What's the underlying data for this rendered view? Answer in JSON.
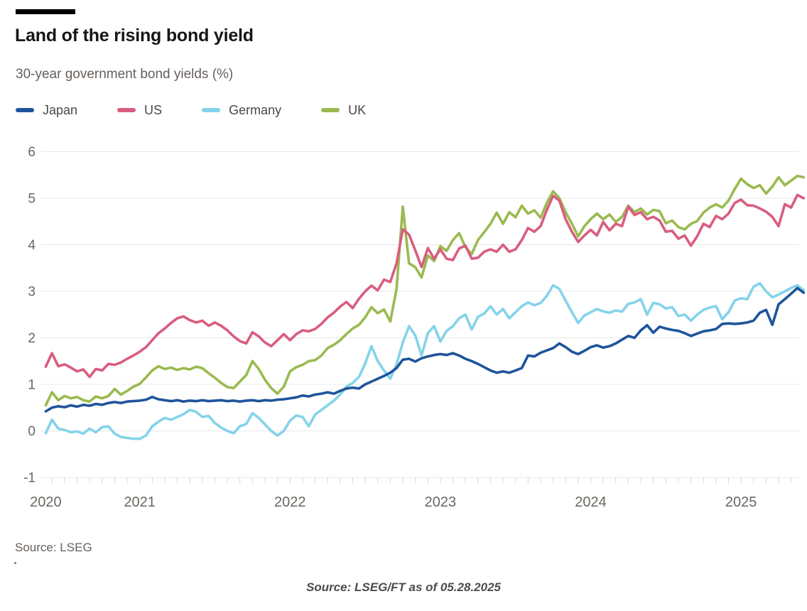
{
  "header": {
    "kicker_bar_color": "#000000",
    "title": "Land of the rising bond yield",
    "subtitle": "30-year government bond yields (%)"
  },
  "legend": [
    {
      "label": "Japan",
      "color": "#1e549b"
    },
    {
      "label": "US",
      "color": "#d95d7f"
    },
    {
      "label": "Germany",
      "color": "#84d3ea"
    },
    {
      "label": "UK",
      "color": "#9aba4f"
    }
  ],
  "footer": {
    "source_note": "Source: LSEG",
    "caption": "Source: LSEG/FT as of 05.28.2025"
  },
  "chart_data": {
    "type": "line",
    "title": "Land of the rising bond yield",
    "subtitle": "30-year government bond yields (%)",
    "xlabel": "",
    "ylabel": "",
    "x_unit": "decimal_year",
    "xlim": [
      2020.34,
      2025.42
    ],
    "ylim": [
      -1,
      6
    ],
    "y_ticks": [
      -1,
      0,
      1,
      2,
      3,
      4,
      5,
      6
    ],
    "x_ticks": [
      {
        "label": "2020",
        "t": 2020.375
      },
      {
        "label": "2021",
        "t": 2021
      },
      {
        "label": "2022",
        "t": 2022
      },
      {
        "label": "2023",
        "t": 2023
      },
      {
        "label": "2024",
        "t": 2024
      },
      {
        "label": "2025",
        "t": 2025
      }
    ],
    "minor_ticks": "monthly",
    "grid": "horizontal",
    "legend_position": "top",
    "style": {
      "grid_color": "#e8e8e8",
      "tick_color": "#d6d6d6",
      "axis_label_color": "#6b6661",
      "line_width": 3.6
    },
    "x_start": 2020.375,
    "x_step": 0.0416667,
    "draw_order": [
      3,
      1,
      2,
      0
    ],
    "series": [
      {
        "name": "Japan",
        "color": "#1e549b",
        "values": [
          0.42,
          0.5,
          0.53,
          0.51,
          0.55,
          0.52,
          0.56,
          0.54,
          0.58,
          0.56,
          0.6,
          0.62,
          0.6,
          0.63,
          0.64,
          0.65,
          0.67,
          0.73,
          0.68,
          0.66,
          0.64,
          0.66,
          0.63,
          0.65,
          0.64,
          0.66,
          0.64,
          0.65,
          0.66,
          0.64,
          0.65,
          0.63,
          0.65,
          0.66,
          0.64,
          0.66,
          0.65,
          0.67,
          0.68,
          0.7,
          0.72,
          0.76,
          0.74,
          0.78,
          0.8,
          0.83,
          0.8,
          0.86,
          0.91,
          0.93,
          0.91,
          1.0,
          1.06,
          1.12,
          1.18,
          1.25,
          1.35,
          1.53,
          1.55,
          1.49,
          1.56,
          1.6,
          1.63,
          1.65,
          1.63,
          1.67,
          1.62,
          1.55,
          1.5,
          1.44,
          1.37,
          1.3,
          1.25,
          1.28,
          1.25,
          1.3,
          1.35,
          1.62,
          1.6,
          1.68,
          1.73,
          1.78,
          1.88,
          1.8,
          1.7,
          1.65,
          1.72,
          1.8,
          1.84,
          1.79,
          1.82,
          1.88,
          1.96,
          2.04,
          2.0,
          2.16,
          2.27,
          2.11,
          2.24,
          2.2,
          2.17,
          2.15,
          2.1,
          2.04,
          2.09,
          2.14,
          2.16,
          2.19,
          2.3,
          2.31,
          2.3,
          2.31,
          2.33,
          2.37,
          2.54,
          2.6,
          2.28,
          2.72,
          2.83,
          2.95,
          3.07,
          2.97
        ]
      },
      {
        "name": "US",
        "color": "#d95d7f",
        "values": [
          1.38,
          1.67,
          1.39,
          1.43,
          1.36,
          1.28,
          1.32,
          1.16,
          1.33,
          1.3,
          1.44,
          1.42,
          1.47,
          1.55,
          1.62,
          1.7,
          1.8,
          1.95,
          2.1,
          2.2,
          2.32,
          2.42,
          2.46,
          2.38,
          2.33,
          2.37,
          2.26,
          2.33,
          2.26,
          2.16,
          2.03,
          1.93,
          1.88,
          2.12,
          2.03,
          1.9,
          1.82,
          1.95,
          2.08,
          1.95,
          2.08,
          2.16,
          2.14,
          2.19,
          2.3,
          2.44,
          2.54,
          2.67,
          2.77,
          2.64,
          2.84,
          3.0,
          3.12,
          3.02,
          3.25,
          3.2,
          3.6,
          4.33,
          4.22,
          3.88,
          3.52,
          3.93,
          3.7,
          3.9,
          3.7,
          3.67,
          3.92,
          3.98,
          3.7,
          3.72,
          3.85,
          3.9,
          3.85,
          4.0,
          3.85,
          3.9,
          4.1,
          4.36,
          4.28,
          4.4,
          4.75,
          5.05,
          4.95,
          4.55,
          4.28,
          4.06,
          4.2,
          4.32,
          4.2,
          4.49,
          4.31,
          4.45,
          4.4,
          4.82,
          4.64,
          4.7,
          4.55,
          4.6,
          4.52,
          4.28,
          4.3,
          4.13,
          4.2,
          3.98,
          4.18,
          4.45,
          4.38,
          4.62,
          4.55,
          4.67,
          4.9,
          4.97,
          4.85,
          4.84,
          4.78,
          4.71,
          4.6,
          4.4,
          4.87,
          4.8,
          5.07,
          5.0
        ]
      },
      {
        "name": "Germany",
        "color": "#84d3ea",
        "values": [
          -0.05,
          0.24,
          0.05,
          0.02,
          -0.03,
          -0.01,
          -0.06,
          0.05,
          -0.03,
          0.08,
          0.1,
          -0.06,
          -0.13,
          -0.15,
          -0.17,
          -0.17,
          -0.1,
          0.1,
          0.2,
          0.28,
          0.24,
          0.3,
          0.36,
          0.45,
          0.41,
          0.3,
          0.32,
          0.17,
          0.07,
          0.0,
          -0.05,
          0.1,
          0.15,
          0.38,
          0.28,
          0.14,
          0.0,
          -0.1,
          0.0,
          0.22,
          0.33,
          0.3,
          0.1,
          0.35,
          0.45,
          0.55,
          0.65,
          0.78,
          0.95,
          1.03,
          1.16,
          1.45,
          1.82,
          1.5,
          1.3,
          1.12,
          1.43,
          1.9,
          2.25,
          2.05,
          1.62,
          2.1,
          2.25,
          1.92,
          2.15,
          2.25,
          2.42,
          2.5,
          2.18,
          2.45,
          2.52,
          2.68,
          2.5,
          2.62,
          2.42,
          2.55,
          2.68,
          2.76,
          2.7,
          2.75,
          2.9,
          3.13,
          3.05,
          2.8,
          2.55,
          2.32,
          2.48,
          2.55,
          2.62,
          2.57,
          2.54,
          2.59,
          2.56,
          2.73,
          2.76,
          2.83,
          2.5,
          2.75,
          2.72,
          2.63,
          2.66,
          2.47,
          2.5,
          2.37,
          2.5,
          2.6,
          2.65,
          2.68,
          2.4,
          2.55,
          2.8,
          2.85,
          2.83,
          3.1,
          3.17,
          3.0,
          2.87,
          2.93,
          3.0,
          3.07,
          3.13,
          3.02
        ]
      },
      {
        "name": "UK",
        "color": "#9aba4f",
        "values": [
          0.55,
          0.83,
          0.66,
          0.75,
          0.7,
          0.73,
          0.66,
          0.63,
          0.74,
          0.7,
          0.75,
          0.9,
          0.78,
          0.86,
          0.95,
          1.01,
          1.15,
          1.3,
          1.39,
          1.33,
          1.36,
          1.31,
          1.35,
          1.32,
          1.38,
          1.35,
          1.24,
          1.14,
          1.03,
          0.94,
          0.92,
          1.06,
          1.2,
          1.5,
          1.33,
          1.1,
          0.92,
          0.8,
          0.95,
          1.28,
          1.37,
          1.42,
          1.5,
          1.52,
          1.62,
          1.78,
          1.85,
          1.95,
          2.08,
          2.2,
          2.28,
          2.44,
          2.66,
          2.53,
          2.61,
          2.35,
          3.05,
          4.82,
          3.6,
          3.52,
          3.3,
          3.77,
          3.65,
          3.97,
          3.87,
          4.1,
          4.25,
          3.95,
          3.8,
          4.1,
          4.27,
          4.45,
          4.69,
          4.45,
          4.7,
          4.59,
          4.84,
          4.67,
          4.74,
          4.58,
          4.9,
          5.15,
          5.0,
          4.7,
          4.45,
          4.18,
          4.4,
          4.55,
          4.67,
          4.55,
          4.65,
          4.49,
          4.6,
          4.84,
          4.7,
          4.78,
          4.65,
          4.75,
          4.72,
          4.46,
          4.52,
          4.38,
          4.33,
          4.45,
          4.51,
          4.69,
          4.8,
          4.87,
          4.8,
          4.95,
          5.2,
          5.42,
          5.3,
          5.22,
          5.28,
          5.1,
          5.25,
          5.45,
          5.28,
          5.38,
          5.48,
          5.45
        ]
      }
    ]
  }
}
